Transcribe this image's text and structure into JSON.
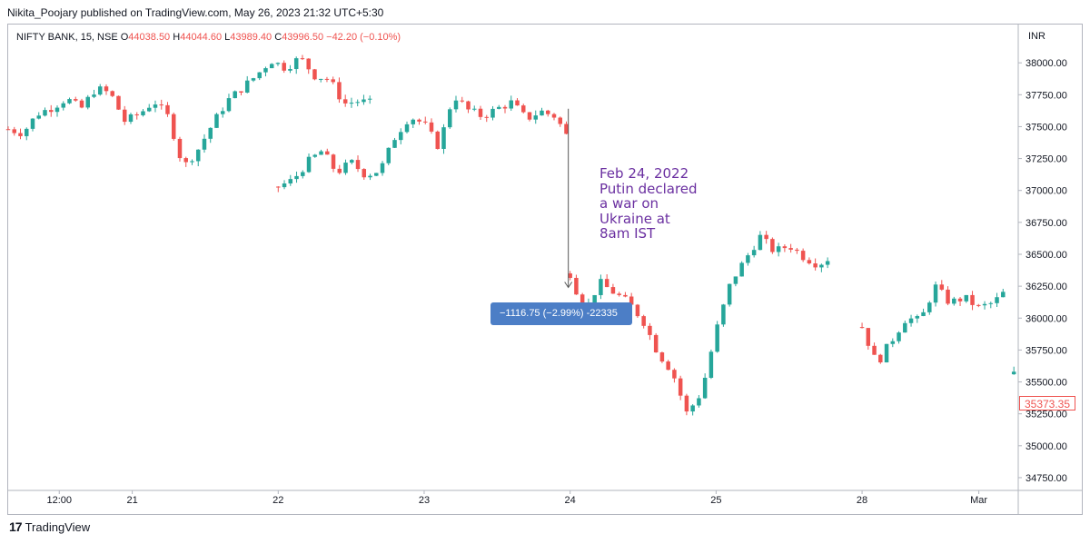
{
  "header": {
    "published_line": "Nikita_Poojary published on TradingView.com, May 26, 2023 21:32 UTC+5:30"
  },
  "legend": {
    "symbol": "NIFTY BANK, 15, NSE",
    "open_label": "O",
    "open": "44038.50",
    "high_label": "H",
    "high": "44044.60",
    "low_label": "L",
    "low": "43989.40",
    "close_label": "C",
    "close": "43996.50",
    "change": "−42.20 (−0.10%)"
  },
  "axis": {
    "currency": "INR"
  },
  "annotation": {
    "text": "Feb 24, 2022 Putin declared a war on Ukraine at 8am IST"
  },
  "measure": {
    "label": "−1116.75 (−2.99%) -22335"
  },
  "last_price": {
    "label": "35373.35"
  },
  "footer": {
    "brand": "TradingView"
  },
  "colors": {
    "up": "#26a69a",
    "down": "#ef5350",
    "annotation": "#6a2fa0",
    "measure_bg": "#4c7ec6"
  },
  "chart_data": {
    "type": "candlestick",
    "ylim": [
      34650,
      38300
    ],
    "y_ticks": [
      "34750.00",
      "35000.00",
      "35250.00",
      "35500.00",
      "35750.00",
      "36000.00",
      "36250.00",
      "36500.00",
      "36750.00",
      "37000.00",
      "37250.00",
      "37500.00",
      "37750.00",
      "38000.00"
    ],
    "x_ticks": [
      "12:00",
      "21",
      "22",
      "23",
      "24",
      "25",
      "28",
      "Mar"
    ],
    "x_tick_positions": [
      1,
      6,
      16,
      26,
      36,
      46,
      56,
      64
    ],
    "x_range": [
      -2.5,
      66.7
    ],
    "sessions": [
      {
        "start": -2.5,
        "points": [
          37480,
          37450,
          37600,
          37650,
          37720,
          37640,
          37800,
          37760,
          37540,
          37600,
          37700,
          37570,
          37180,
          37320,
          37520,
          37700,
          37800,
          37900,
          38020,
          37960,
          38040,
          37900,
          37870,
          37680,
          37700,
          37680
        ]
      },
      {
        "start": 16.0,
        "points": [
          37030,
          37080,
          37220,
          37310,
          37140,
          37220,
          37120,
          37160,
          37420,
          37580,
          37520,
          37340,
          37750,
          37630,
          37580,
          37640,
          37690,
          37560,
          37620,
          37580,
          37380
        ]
      },
      {
        "start": 36.0,
        "points": [
          36350,
          36040,
          36280,
          36200,
          36120,
          35980,
          35730,
          35580,
          35250,
          35420,
          35900,
          36280,
          36460,
          36640,
          36520,
          36570,
          36480,
          36420,
          36490
        ]
      },
      {
        "start": 56.0,
        "points": [
          35930,
          35640,
          35820,
          36000,
          35980,
          36250,
          36120,
          36160,
          36080,
          36120,
          36230
        ]
      },
      {
        "start": 66.4,
        "points": [
          35560,
          35373
        ]
      }
    ],
    "measure_arrow": {
      "x": 36.0,
      "from": 37640,
      "to": 36240
    }
  }
}
